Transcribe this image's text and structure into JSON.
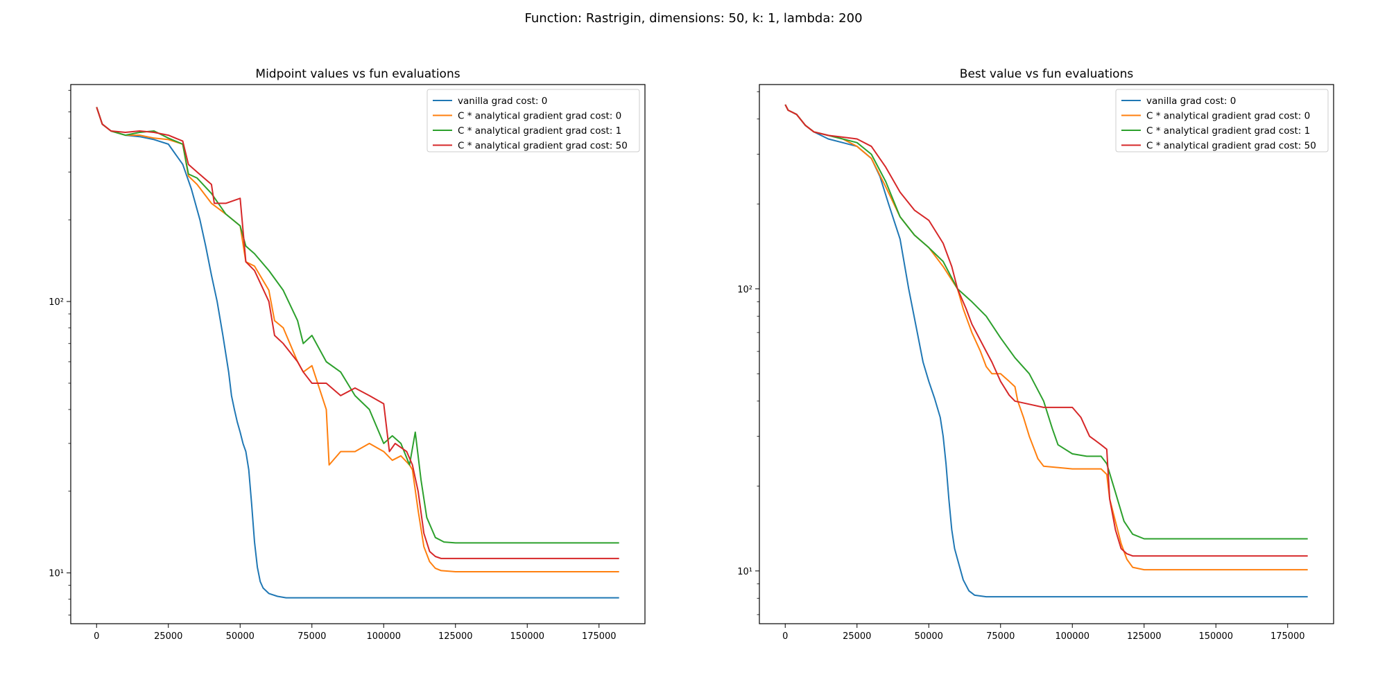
{
  "figure": {
    "suptitle": "Function: Rastrigin, dimensions: 50, k: 1, lambda: 200"
  },
  "colors": {
    "series": [
      "#1f77b4",
      "#ff7f0e",
      "#2ca02c",
      "#d62728"
    ]
  },
  "chart_data": [
    {
      "type": "line",
      "title": "Midpoint values vs fun evaluations",
      "xlabel": "",
      "ylabel": "",
      "yscale": "log",
      "xlim": [
        -9000,
        191000
      ],
      "ylim": [
        6.5,
        630
      ],
      "xticks": [
        0,
        25000,
        50000,
        75000,
        100000,
        125000,
        150000,
        175000
      ],
      "yticks_major": [
        {
          "value": 10,
          "label": "10¹"
        },
        {
          "value": 100,
          "label": "10²"
        }
      ],
      "legend": "upper right",
      "grid": false,
      "series": [
        {
          "name": "vanilla grad cost: 0",
          "x": [
            0,
            2000,
            5000,
            10000,
            15000,
            20000,
            25000,
            30000,
            33000,
            36000,
            38000,
            40000,
            42000,
            44000,
            46000,
            47000,
            48000,
            49000,
            50000,
            51000,
            52000,
            53000,
            54000,
            55000,
            56000,
            57000,
            58000,
            60000,
            63000,
            66000,
            70000,
            100000,
            150000,
            182000
          ],
          "y": [
            520,
            450,
            425,
            410,
            405,
            395,
            380,
            320,
            260,
            200,
            160,
            125,
            100,
            75,
            55,
            45,
            40,
            36,
            33,
            30,
            28,
            24,
            18,
            13,
            10.5,
            9.3,
            8.8,
            8.4,
            8.2,
            8.1,
            8.1,
            8.1,
            8.1,
            8.1
          ]
        },
        {
          "name": "C * analytical gradient grad cost: 0",
          "x": [
            0,
            2000,
            5000,
            10000,
            15000,
            20000,
            25000,
            30000,
            32000,
            35000,
            40000,
            45000,
            50000,
            52000,
            55000,
            60000,
            62000,
            65000,
            70000,
            72000,
            75000,
            80000,
            81000,
            85000,
            90000,
            95000,
            100000,
            103000,
            106000,
            109000,
            110000,
            112000,
            114000,
            116000,
            118000,
            120000,
            125000,
            150000,
            182000
          ],
          "y": [
            520,
            450,
            425,
            410,
            410,
            400,
            395,
            380,
            290,
            270,
            230,
            210,
            190,
            140,
            135,
            110,
            85,
            80,
            60,
            55,
            58,
            40,
            25,
            28,
            28,
            30,
            28,
            26,
            27,
            25,
            24,
            17,
            12.5,
            11,
            10.4,
            10.2,
            10.1,
            10.1,
            10.1
          ]
        },
        {
          "name": "C * analytical gradient grad cost: 1",
          "x": [
            0,
            2000,
            5000,
            10000,
            15000,
            20000,
            25000,
            30000,
            32000,
            35000,
            40000,
            45000,
            50000,
            52000,
            55000,
            60000,
            65000,
            70000,
            72000,
            75000,
            80000,
            85000,
            90000,
            95000,
            100000,
            103000,
            106000,
            109000,
            111000,
            113000,
            115000,
            118000,
            121000,
            125000,
            150000,
            182000
          ],
          "y": [
            520,
            450,
            425,
            410,
            420,
            425,
            400,
            380,
            295,
            285,
            250,
            210,
            190,
            160,
            150,
            130,
            110,
            85,
            70,
            75,
            60,
            55,
            45,
            40,
            30,
            32,
            30,
            25,
            33,
            22,
            16,
            13.5,
            13,
            12.9,
            12.9,
            12.9
          ]
        },
        {
          "name": "C * analytical gradient grad cost: 50",
          "x": [
            0,
            2000,
            5000,
            10000,
            15000,
            20000,
            25000,
            30000,
            32000,
            35000,
            40000,
            41000,
            45000,
            50000,
            52000,
            55000,
            60000,
            62000,
            65000,
            70000,
            72000,
            75000,
            80000,
            85000,
            90000,
            95000,
            100000,
            102000,
            104000,
            108000,
            110000,
            112000,
            114000,
            116000,
            118000,
            120000,
            125000,
            150000,
            182000
          ],
          "y": [
            520,
            450,
            425,
            420,
            425,
            420,
            410,
            390,
            320,
            300,
            270,
            230,
            230,
            240,
            140,
            130,
            100,
            75,
            70,
            60,
            55,
            50,
            50,
            45,
            48,
            45,
            42,
            28,
            30,
            28,
            25,
            20,
            14,
            12,
            11.5,
            11.3,
            11.3,
            11.3,
            11.3
          ]
        }
      ]
    },
    {
      "type": "line",
      "title": "Best value vs fun evaluations",
      "xlabel": "",
      "ylabel": "",
      "yscale": "log",
      "xlim": [
        -9000,
        191000
      ],
      "ylim": [
        6.5,
        530
      ],
      "xticks": [
        0,
        25000,
        50000,
        75000,
        100000,
        125000,
        150000,
        175000
      ],
      "yticks_major": [
        {
          "value": 10,
          "label": "10¹"
        },
        {
          "value": 100,
          "label": "10²"
        }
      ],
      "legend": "upper right",
      "grid": false,
      "series": [
        {
          "name": "vanilla grad cost: 0",
          "x": [
            0,
            1000,
            4000,
            7000,
            10000,
            15000,
            20000,
            25000,
            30000,
            33000,
            36000,
            40000,
            43000,
            46000,
            48000,
            50000,
            52000,
            54000,
            55000,
            56000,
            57000,
            58000,
            59000,
            60000,
            62000,
            64000,
            66000,
            70000,
            100000,
            150000,
            182000
          ],
          "y": [
            450,
            430,
            415,
            380,
            360,
            340,
            330,
            320,
            290,
            250,
            200,
            150,
            100,
            70,
            55,
            47,
            41,
            35,
            30,
            24,
            18,
            14,
            12,
            11,
            9.3,
            8.5,
            8.2,
            8.1,
            8.1,
            8.1,
            8.1
          ]
        },
        {
          "name": "C * analytical gradient grad cost: 0",
          "x": [
            0,
            1000,
            4000,
            7000,
            10000,
            15000,
            20000,
            25000,
            30000,
            35000,
            40000,
            45000,
            50000,
            55000,
            60000,
            62000,
            65000,
            68000,
            70000,
            72000,
            75000,
            78000,
            80000,
            81000,
            83000,
            85000,
            88000,
            90000,
            100000,
            110000,
            112000,
            113000,
            115000,
            117000,
            119000,
            121000,
            125000,
            150000,
            182000
          ],
          "y": [
            450,
            430,
            415,
            380,
            360,
            350,
            340,
            320,
            290,
            230,
            180,
            155,
            140,
            120,
            100,
            85,
            70,
            60,
            53,
            50,
            50,
            47,
            45,
            40,
            35,
            30,
            25,
            23.5,
            23,
            23,
            22,
            18,
            15,
            12.5,
            11,
            10.3,
            10.1,
            10.1,
            10.1
          ]
        },
        {
          "name": "C * analytical gradient grad cost: 1",
          "x": [
            0,
            1000,
            4000,
            7000,
            10000,
            15000,
            20000,
            25000,
            30000,
            35000,
            40000,
            45000,
            50000,
            55000,
            60000,
            65000,
            70000,
            75000,
            80000,
            85000,
            90000,
            93000,
            95000,
            100000,
            105000,
            110000,
            112000,
            115000,
            118000,
            121000,
            125000,
            150000,
            182000
          ],
          "y": [
            450,
            430,
            415,
            380,
            360,
            350,
            340,
            330,
            300,
            240,
            180,
            155,
            140,
            125,
            100,
            90,
            80,
            67,
            57,
            50,
            40,
            32,
            28,
            26,
            25.5,
            25.5,
            24,
            19,
            15,
            13.5,
            13,
            13,
            13
          ]
        },
        {
          "name": "C * analytical gradient grad cost: 50",
          "x": [
            0,
            1000,
            4000,
            7000,
            10000,
            15000,
            20000,
            25000,
            30000,
            35000,
            40000,
            45000,
            50000,
            55000,
            58000,
            60000,
            63000,
            65000,
            70000,
            72000,
            75000,
            78000,
            80000,
            85000,
            90000,
            100000,
            103000,
            106000,
            108000,
            110000,
            112000,
            113000,
            115000,
            117000,
            119000,
            121000,
            125000,
            150000,
            182000
          ],
          "y": [
            450,
            430,
            415,
            380,
            360,
            350,
            345,
            340,
            320,
            270,
            220,
            190,
            175,
            145,
            120,
            100,
            85,
            75,
            60,
            55,
            47,
            42,
            40,
            39,
            38,
            38,
            35,
            30,
            29,
            28,
            27,
            18,
            14,
            12,
            11.5,
            11.3,
            11.3,
            11.3,
            11.3
          ]
        }
      ]
    }
  ]
}
